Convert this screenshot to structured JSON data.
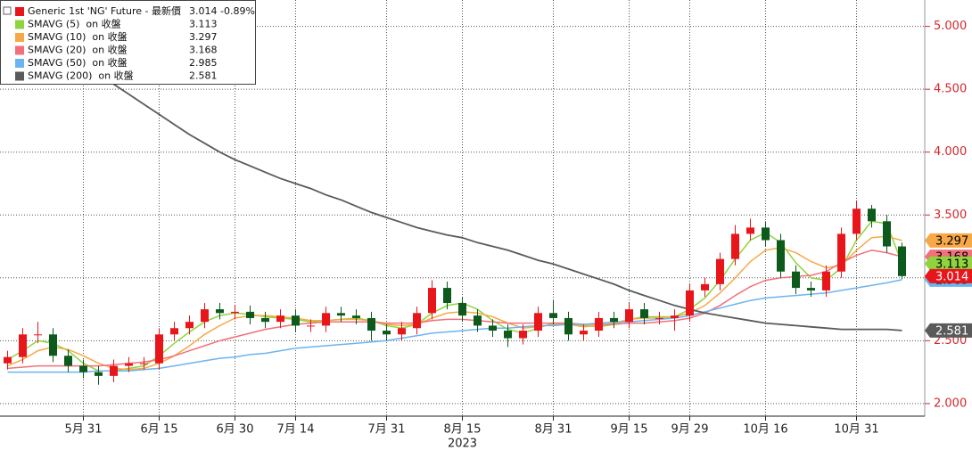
{
  "chart_data": {
    "type": "candlestick",
    "categories": [
      null,
      null,
      null,
      null,
      null,
      "5月 31",
      null,
      null,
      null,
      null,
      "6月 15",
      null,
      null,
      null,
      null,
      "6月 30",
      null,
      null,
      null,
      "7月 14",
      null,
      null,
      null,
      null,
      null,
      "7月 31",
      null,
      null,
      null,
      null,
      "8月 15",
      null,
      null,
      null,
      null,
      null,
      "8月 31",
      null,
      null,
      null,
      null,
      "9月 15",
      null,
      null,
      null,
      "9月 29",
      null,
      null,
      null,
      null,
      "10月 16",
      null,
      null,
      null,
      null,
      null,
      "10月 31",
      null,
      null,
      null
    ],
    "year_label": "2023",
    "candles": {
      "name": "Generic 1st 'NG' Future - 最新價",
      "up_color": "#e8161b",
      "down_color": "#0d5a1c",
      "legend_color": "#e8161b",
      "change": {
        "value": -0.89,
        "label": "-0.89%"
      },
      "open": [
        2.32,
        2.37,
        2.55,
        2.55,
        2.38,
        2.3,
        2.25,
        2.22,
        2.3,
        2.32,
        2.32,
        2.55,
        2.6,
        2.65,
        2.75,
        2.72,
        2.73,
        2.68,
        2.65,
        2.7,
        2.62,
        2.62,
        2.72,
        2.7,
        2.68,
        2.58,
        2.55,
        2.6,
        2.72,
        2.92,
        2.8,
        2.7,
        2.62,
        2.58,
        2.52,
        2.58,
        2.72,
        2.68,
        2.55,
        2.58,
        2.68,
        2.65,
        2.75,
        2.68,
        2.68,
        2.7,
        2.9,
        2.95,
        3.15,
        3.35,
        3.4,
        3.3,
        3.05,
        2.92,
        2.9,
        3.05,
        3.35,
        3.55,
        3.45,
        3.25
      ],
      "high": [
        2.42,
        2.6,
        2.65,
        2.6,
        2.43,
        2.35,
        2.3,
        2.35,
        2.37,
        2.37,
        2.6,
        2.65,
        2.7,
        2.8,
        2.8,
        2.78,
        2.78,
        2.73,
        2.75,
        2.75,
        2.67,
        2.77,
        2.77,
        2.75,
        2.73,
        2.63,
        2.65,
        2.77,
        2.98,
        2.97,
        2.85,
        2.75,
        2.67,
        2.63,
        2.63,
        2.77,
        2.82,
        2.73,
        2.63,
        2.73,
        2.73,
        2.8,
        2.8,
        2.73,
        2.75,
        2.95,
        3.0,
        3.2,
        3.42,
        3.47,
        3.45,
        3.35,
        3.1,
        2.97,
        3.1,
        3.4,
        3.61,
        3.58,
        3.5,
        3.28
      ],
      "low": [
        2.27,
        2.32,
        2.48,
        2.33,
        2.25,
        2.2,
        2.15,
        2.17,
        2.25,
        2.27,
        2.27,
        2.5,
        2.55,
        2.6,
        2.67,
        2.67,
        2.63,
        2.6,
        2.6,
        2.57,
        2.57,
        2.57,
        2.65,
        2.63,
        2.5,
        2.5,
        2.5,
        2.55,
        2.67,
        2.75,
        2.65,
        2.57,
        2.53,
        2.45,
        2.47,
        2.53,
        2.63,
        2.5,
        2.5,
        2.53,
        2.6,
        2.6,
        2.63,
        2.63,
        2.58,
        2.65,
        2.85,
        2.9,
        3.1,
        3.3,
        3.25,
        3.0,
        2.87,
        2.85,
        2.85,
        3.0,
        3.3,
        3.4,
        3.2,
        2.99
      ],
      "close": [
        2.37,
        2.55,
        2.55,
        2.38,
        2.3,
        2.25,
        2.22,
        2.3,
        2.32,
        2.32,
        2.55,
        2.6,
        2.65,
        2.75,
        2.72,
        2.73,
        2.68,
        2.65,
        2.7,
        2.62,
        2.62,
        2.72,
        2.7,
        2.68,
        2.58,
        2.55,
        2.6,
        2.72,
        2.92,
        2.8,
        2.7,
        2.62,
        2.58,
        2.52,
        2.58,
        2.72,
        2.68,
        2.55,
        2.58,
        2.68,
        2.65,
        2.75,
        2.68,
        2.68,
        2.7,
        2.9,
        2.95,
        3.15,
        3.35,
        3.4,
        3.3,
        3.05,
        2.92,
        2.9,
        3.05,
        3.35,
        3.55,
        3.45,
        3.25,
        3.014
      ]
    },
    "series": [
      {
        "name": "SMAVG (5)  on 收盤",
        "color": "#8fd43e",
        "values": [
          2.35,
          2.42,
          2.5,
          2.48,
          2.42,
          2.32,
          2.26,
          2.26,
          2.28,
          2.3,
          2.38,
          2.48,
          2.57,
          2.65,
          2.7,
          2.72,
          2.71,
          2.69,
          2.68,
          2.67,
          2.65,
          2.66,
          2.67,
          2.68,
          2.66,
          2.62,
          2.6,
          2.63,
          2.72,
          2.78,
          2.8,
          2.75,
          2.66,
          2.59,
          2.56,
          2.6,
          2.64,
          2.64,
          2.62,
          2.61,
          2.63,
          2.67,
          2.69,
          2.69,
          2.69,
          2.75,
          2.84,
          2.98,
          3.15,
          3.3,
          3.36,
          3.28,
          3.12,
          3.0,
          2.98,
          3.08,
          3.3,
          3.45,
          3.43,
          3.113
        ]
      },
      {
        "name": "SMAVG (10)  on 收盤",
        "color": "#f7a847",
        "values": [
          2.3,
          2.35,
          2.42,
          2.45,
          2.43,
          2.38,
          2.32,
          2.28,
          2.27,
          2.28,
          2.32,
          2.38,
          2.46,
          2.55,
          2.62,
          2.68,
          2.7,
          2.7,
          2.69,
          2.68,
          2.66,
          2.66,
          2.67,
          2.67,
          2.66,
          2.63,
          2.62,
          2.63,
          2.68,
          2.72,
          2.73,
          2.72,
          2.69,
          2.64,
          2.6,
          2.61,
          2.63,
          2.63,
          2.61,
          2.62,
          2.64,
          2.67,
          2.68,
          2.68,
          2.69,
          2.72,
          2.78,
          2.88,
          3.0,
          3.13,
          3.22,
          3.24,
          3.2,
          3.13,
          3.08,
          3.1,
          3.22,
          3.32,
          3.33,
          3.297
        ]
      },
      {
        "name": "SMAVG (20)  on 收盤",
        "color": "#f2707a",
        "values": [
          2.28,
          2.29,
          2.3,
          2.3,
          2.3,
          2.3,
          2.3,
          2.31,
          2.32,
          2.33,
          2.35,
          2.38,
          2.42,
          2.46,
          2.5,
          2.53,
          2.56,
          2.59,
          2.61,
          2.63,
          2.64,
          2.65,
          2.65,
          2.65,
          2.65,
          2.64,
          2.64,
          2.64,
          2.66,
          2.67,
          2.67,
          2.66,
          2.65,
          2.64,
          2.64,
          2.64,
          2.64,
          2.64,
          2.63,
          2.63,
          2.63,
          2.64,
          2.64,
          2.65,
          2.66,
          2.68,
          2.72,
          2.78,
          2.86,
          2.93,
          2.98,
          3.0,
          3.01,
          3.02,
          3.05,
          3.12,
          3.18,
          3.22,
          3.2,
          3.168
        ]
      },
      {
        "name": "SMAVG (50)  on 收盤",
        "color": "#6cb4f0",
        "values": [
          2.25,
          2.25,
          2.25,
          2.25,
          2.25,
          2.25,
          2.26,
          2.26,
          2.26,
          2.27,
          2.28,
          2.3,
          2.32,
          2.34,
          2.36,
          2.37,
          2.39,
          2.4,
          2.42,
          2.44,
          2.45,
          2.46,
          2.47,
          2.48,
          2.49,
          2.5,
          2.52,
          2.54,
          2.56,
          2.57,
          2.58,
          2.59,
          2.6,
          2.6,
          2.61,
          2.62,
          2.62,
          2.63,
          2.63,
          2.64,
          2.65,
          2.65,
          2.66,
          2.67,
          2.68,
          2.7,
          2.73,
          2.76,
          2.79,
          2.82,
          2.84,
          2.85,
          2.86,
          2.87,
          2.88,
          2.9,
          2.92,
          2.94,
          2.96,
          2.985
        ]
      },
      {
        "name": "SMAVG (200)  on 收盤",
        "color": "#5a5a5a",
        "values": [
          5.02,
          4.97,
          4.91,
          4.84,
          4.77,
          4.7,
          4.62,
          4.54,
          4.46,
          4.38,
          4.3,
          4.22,
          4.14,
          4.07,
          4.0,
          3.94,
          3.89,
          3.84,
          3.79,
          3.75,
          3.71,
          3.66,
          3.62,
          3.57,
          3.52,
          3.48,
          3.44,
          3.4,
          3.37,
          3.34,
          3.32,
          3.28,
          3.25,
          3.22,
          3.18,
          3.14,
          3.11,
          3.07,
          3.03,
          2.99,
          2.95,
          2.9,
          2.86,
          2.82,
          2.78,
          2.75,
          2.72,
          2.7,
          2.68,
          2.66,
          2.64,
          2.63,
          2.62,
          2.61,
          2.6,
          2.59,
          2.59,
          2.59,
          2.59,
          2.581
        ]
      }
    ],
    "ylim": [
      1.9,
      5.21
    ],
    "yticks": [
      {
        "value": 2,
        "label": "2.000"
      },
      {
        "value": 2.5,
        "label": "2.500"
      },
      {
        "value": 3,
        "label": "3.000"
      },
      {
        "value": 3.5,
        "label": "3.500"
      },
      {
        "value": 4,
        "label": "4.000"
      },
      {
        "value": 4.5,
        "label": "4.500"
      },
      {
        "value": 5,
        "label": "5.000"
      }
    ],
    "axis_color": "#d6262b",
    "grid": true
  }
}
